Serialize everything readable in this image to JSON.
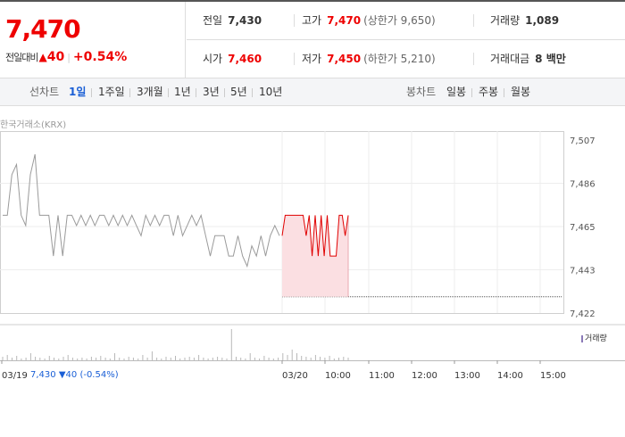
{
  "summary": {
    "price": "7,470",
    "change_label": "전일대비",
    "change_icon": "up-triangle",
    "change_value": "40",
    "change_pct": "+0.54%"
  },
  "stats": {
    "prev_close_label": "전일",
    "prev_close": "7,430",
    "high_label": "고가",
    "high": "7,470",
    "upper_limit": "(상한가 9,650)",
    "volume_label": "거래량",
    "volume": "1,089",
    "open_label": "시가",
    "open": "7,460",
    "low_label": "저가",
    "low": "7,450",
    "lower_limit": "(하한가 5,210)",
    "amount_label": "거래대금",
    "amount": "8 백만"
  },
  "tabs": {
    "line_chart_label": "선차트",
    "periods": [
      "1일",
      "1주일",
      "3개월",
      "1년",
      "3년",
      "5년",
      "10년"
    ],
    "active_period": "1일",
    "candle_label": "봉차트",
    "candles": [
      "일봉",
      "주봉",
      "월봉"
    ]
  },
  "source": "한국거래소(KRX)",
  "volume_legend": "거래량",
  "prev_info": {
    "date": "03/19",
    "price": "7,430",
    "change": "▼40",
    "pct": "(-0.54%)"
  },
  "colors": {
    "up": "#e00000",
    "down": "#1a5fd6",
    "prev_line": "#9a9a9a",
    "fill": "#fbdfe2",
    "volume": "#b8b8b8"
  },
  "chart_data": {
    "type": "line",
    "ylim": [
      7422,
      7507
    ],
    "yticks": [
      "7,507",
      "7,486",
      "7,465",
      "7,443",
      "7,422"
    ],
    "xticks": [
      "03/19",
      "03/20",
      "10:00",
      "11:00",
      "12:00",
      "13:00",
      "14:00",
      "15:00"
    ],
    "base_price": 7430,
    "series": [
      {
        "name": "",
        "date": "03/19",
        "values": [
          7470,
          7470,
          7490,
          7495,
          7470,
          7465,
          7490,
          7500,
          7470,
          7470,
          7470,
          7450,
          7470,
          7450,
          7470,
          7470,
          7465,
          7470,
          7465,
          7470,
          7465,
          7470,
          7470,
          7465,
          7470,
          7465,
          7470,
          7465,
          7470,
          7465,
          7460,
          7470,
          7465,
          7470,
          7465,
          7470,
          7470,
          7460,
          7470,
          7460,
          7465,
          7470,
          7465,
          7470,
          7460,
          7450,
          7460,
          7460,
          7460,
          7450,
          7450,
          7460,
          7450,
          7445,
          7455,
          7450,
          7460,
          7450,
          7460,
          7465,
          7460
        ]
      },
      {
        "name": "",
        "date": "03/20",
        "values": [
          7460,
          7470,
          7470,
          7470,
          7470,
          7470,
          7470,
          7470,
          7460,
          7470,
          7450,
          7470,
          7450,
          7470,
          7450,
          7470,
          7450,
          7450,
          7450,
          7470,
          7470,
          7460,
          7470
        ]
      }
    ],
    "volume": [
      4,
      6,
      3,
      5,
      2,
      3,
      8,
      4,
      3,
      2,
      5,
      3,
      2,
      4,
      6,
      3,
      2,
      3,
      2,
      4,
      3,
      5,
      3,
      2,
      8,
      3,
      2,
      4,
      3,
      2,
      6,
      3,
      10,
      3,
      2,
      4,
      3,
      5,
      2,
      3,
      4,
      3,
      6,
      3,
      2,
      3,
      4,
      3,
      2,
      35,
      4,
      3,
      2,
      8,
      3,
      2,
      5,
      3,
      2,
      3,
      8,
      6,
      12,
      8,
      5,
      4,
      3,
      6,
      4,
      3,
      5,
      2,
      3,
      4,
      3
    ]
  }
}
